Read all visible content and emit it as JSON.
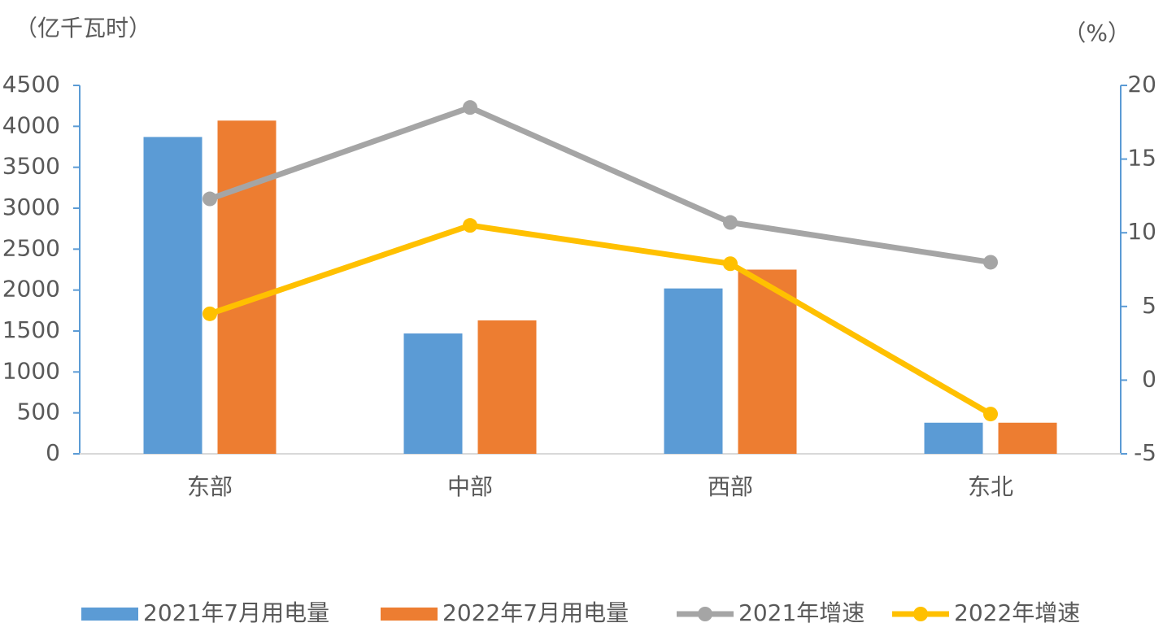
{
  "chart_data": {
    "type": "combo",
    "y_axis_label": "（亿千瓦时）",
    "y2_axis_label": "（%）",
    "categories": [
      "东部",
      "中部",
      "西部",
      "东北"
    ],
    "series": [
      {
        "name": "2021年7月用电量",
        "type": "bar",
        "color": "#5b9bd5",
        "values": [
          3870,
          1470,
          2020,
          380
        ]
      },
      {
        "name": "2022年7月用电量",
        "type": "bar",
        "color": "#ed7d31",
        "values": [
          4070,
          1630,
          2250,
          380
        ]
      },
      {
        "name": "2021年增速",
        "type": "line",
        "axis": "y2",
        "color": "#a5a5a5",
        "values": [
          12.3,
          18.5,
          10.7,
          8.0
        ]
      },
      {
        "name": "2022年增速",
        "type": "line",
        "axis": "y2",
        "color": "#ffc000",
        "values": [
          4.5,
          10.5,
          7.9,
          -2.3
        ]
      }
    ],
    "ylim": [
      0,
      4500
    ],
    "yticks": [
      0,
      500,
      1000,
      1500,
      2000,
      2500,
      3000,
      3500,
      4000,
      4500
    ],
    "y2lim": [
      -5,
      20
    ],
    "y2ticks": [
      -5,
      0,
      5,
      10,
      15,
      20
    ],
    "grid": false,
    "legend": "bottom"
  }
}
